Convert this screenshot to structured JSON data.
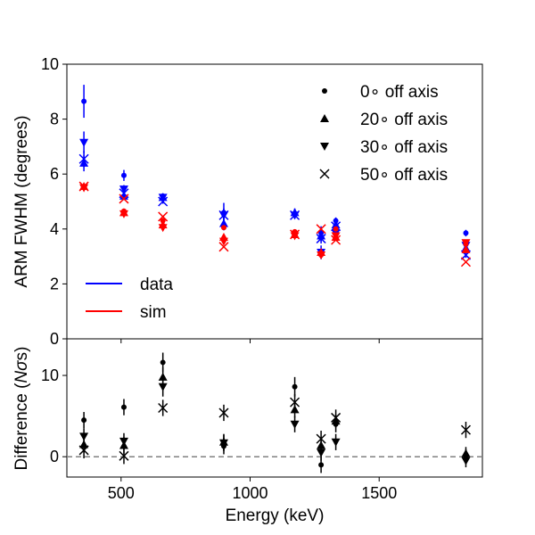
{
  "chart_data": [
    {
      "panel": "top",
      "type": "scatter",
      "ylabel": "ARM FWHM (degrees)",
      "ylim": [
        0,
        10
      ],
      "yticks": [
        0,
        2,
        4,
        6,
        8,
        10
      ],
      "xlim": [
        290,
        1900
      ],
      "legend_placement": "top-right",
      "legend_markers": [
        {
          "marker": "dot",
          "label": "0∘ off axis"
        },
        {
          "marker": "triangle-up",
          "label": "20∘ off axis"
        },
        {
          "marker": "triangle-down",
          "label": "30∘ off axis"
        },
        {
          "marker": "x",
          "label": "50∘ off axis"
        }
      ],
      "legend_lines": [
        {
          "label": "data",
          "color": "#0000ff"
        },
        {
          "label": "sim",
          "color": "#ff0000"
        }
      ],
      "series": [
        {
          "source": "data",
          "marker": "dot",
          "color": "#0000ff",
          "points": [
            [
              356,
              8.65,
              0.6
            ],
            [
              511,
              5.95,
              0.2
            ],
            [
              662,
              5.2,
              0.1
            ],
            [
              898,
              4.6,
              0.35
            ],
            [
              1173,
              4.55,
              0.18
            ],
            [
              1275,
              3.85,
              0.25
            ],
            [
              1332,
              4.3,
              0.12
            ],
            [
              1836,
              3.85,
              0.12
            ]
          ]
        },
        {
          "source": "data",
          "marker": "triangle-up",
          "color": "#0000ff",
          "points": [
            [
              356,
              6.4,
              0.3
            ],
            [
              511,
              5.2,
              0.15
            ],
            [
              662,
              5.15,
              0.1
            ],
            [
              898,
              4.2,
              0.25
            ],
            [
              1173,
              4.6,
              0.15
            ],
            [
              1275,
              3.75,
              0.2
            ],
            [
              1332,
              4.15,
              0.1
            ],
            [
              1836,
              3.3,
              0.1
            ]
          ]
        },
        {
          "source": "data",
          "marker": "triangle-down",
          "color": "#0000ff",
          "points": [
            [
              356,
              7.15,
              0.4
            ],
            [
              511,
              5.45,
              0.15
            ],
            [
              662,
              5.15,
              0.1
            ],
            [
              898,
              4.5,
              0.25
            ],
            [
              1173,
              4.5,
              0.12
            ],
            [
              1275,
              3.15,
              0.25
            ],
            [
              1332,
              3.85,
              0.1
            ],
            [
              1836,
              3.4,
              0.12
            ]
          ]
        },
        {
          "source": "data",
          "marker": "x",
          "color": "#0000ff",
          "points": [
            [
              356,
              6.55,
              0.3
            ],
            [
              511,
              5.3,
              0.15
            ],
            [
              662,
              5.0,
              0.08
            ],
            [
              898,
              4.5,
              0.22
            ],
            [
              1173,
              4.5,
              0.1
            ],
            [
              1275,
              3.65,
              0.18
            ],
            [
              1332,
              4.1,
              0.1
            ],
            [
              1836,
              3.05,
              0.1
            ]
          ]
        },
        {
          "source": "sim",
          "marker": "dot",
          "color": "#ff0000",
          "points": [
            [
              356,
              5.55,
              0
            ],
            [
              511,
              4.65,
              0
            ],
            [
              662,
              4.3,
              0
            ],
            [
              898,
              4.05,
              0
            ],
            [
              1173,
              3.9,
              0
            ],
            [
              1275,
              3.05,
              0
            ],
            [
              1332,
              4.0,
              0
            ],
            [
              1836,
              3.45,
              0
            ]
          ]
        },
        {
          "source": "sim",
          "marker": "triangle-up",
          "color": "#ff0000",
          "points": [
            [
              356,
              5.55,
              0
            ],
            [
              511,
              4.6,
              0
            ],
            [
              662,
              4.15,
              0
            ],
            [
              898,
              3.7,
              0
            ],
            [
              1173,
              3.8,
              0
            ],
            [
              1275,
              3.15,
              0
            ],
            [
              1332,
              3.7,
              0
            ],
            [
              1836,
              3.25,
              0
            ]
          ]
        },
        {
          "source": "sim",
          "marker": "triangle-down",
          "color": "#ff0000",
          "points": [
            [
              356,
              5.5,
              0
            ],
            [
              511,
              4.55,
              0
            ],
            [
              662,
              4.05,
              0
            ],
            [
              898,
              3.55,
              0
            ],
            [
              1173,
              3.75,
              0
            ],
            [
              1275,
              3.05,
              0
            ],
            [
              1332,
              3.75,
              0
            ],
            [
              1836,
              3.5,
              0
            ]
          ]
        },
        {
          "source": "sim",
          "marker": "x",
          "color": "#ff0000",
          "points": [
            [
              356,
              5.55,
              0
            ],
            [
              511,
              5.1,
              0
            ],
            [
              662,
              4.45,
              0
            ],
            [
              898,
              3.35,
              0
            ],
            [
              1173,
              3.8,
              0
            ],
            [
              1275,
              4.0,
              0
            ],
            [
              1332,
              3.6,
              0
            ],
            [
              1836,
              2.8,
              0
            ]
          ]
        }
      ]
    },
    {
      "panel": "bottom",
      "type": "scatter",
      "xlabel": "Energy (keV)",
      "ylabel": "Difference (Nσs)",
      "xlim": [
        290,
        1900
      ],
      "xticks": [
        500,
        1000,
        1500
      ],
      "ylim": [
        -2.5,
        14.5
      ],
      "yticks": [
        0,
        10
      ],
      "reference_line": {
        "y": 0,
        "style": "dashed",
        "color": "#808080"
      },
      "series": [
        {
          "marker": "dot",
          "color": "#000000",
          "points": [
            [
              356,
              4.5,
              1.0
            ],
            [
              511,
              6.1,
              1.0
            ],
            [
              662,
              11.6,
              1.2
            ],
            [
              898,
              1.3,
              1.0
            ],
            [
              1173,
              8.6,
              1.2
            ],
            [
              1275,
              -1.0,
              1.0
            ],
            [
              1332,
              4.0,
              1.0
            ],
            [
              1836,
              0.1,
              0.8
            ]
          ]
        },
        {
          "marker": "triangle-up",
          "color": "#000000",
          "points": [
            [
              356,
              1.5,
              1.0
            ],
            [
              511,
              1.4,
              1.0
            ],
            [
              662,
              9.8,
              1.2
            ],
            [
              898,
              1.8,
              1.0
            ],
            [
              1173,
              5.8,
              1.0
            ],
            [
              1275,
              1.4,
              1.0
            ],
            [
              1332,
              4.4,
              0.8
            ],
            [
              1836,
              0.4,
              0.8
            ]
          ]
        },
        {
          "marker": "triangle-down",
          "color": "#000000",
          "points": [
            [
              356,
              2.5,
              1.0
            ],
            [
              511,
              1.9,
              1.0
            ],
            [
              662,
              8.6,
              1.2
            ],
            [
              898,
              1.7,
              1.0
            ],
            [
              1173,
              4.0,
              1.0
            ],
            [
              1275,
              0.5,
              1.0
            ],
            [
              1332,
              1.8,
              1.0
            ],
            [
              1836,
              -0.5,
              0.8
            ]
          ]
        },
        {
          "marker": "x",
          "color": "#000000",
          "points": [
            [
              356,
              0.8,
              1.0
            ],
            [
              511,
              0.1,
              1.0
            ],
            [
              662,
              6.0,
              1.0
            ],
            [
              898,
              5.4,
              1.0
            ],
            [
              1173,
              6.7,
              1.0
            ],
            [
              1275,
              2.2,
              1.0
            ],
            [
              1332,
              4.8,
              1.0
            ],
            [
              1836,
              3.3,
              1.0
            ]
          ]
        }
      ]
    }
  ]
}
